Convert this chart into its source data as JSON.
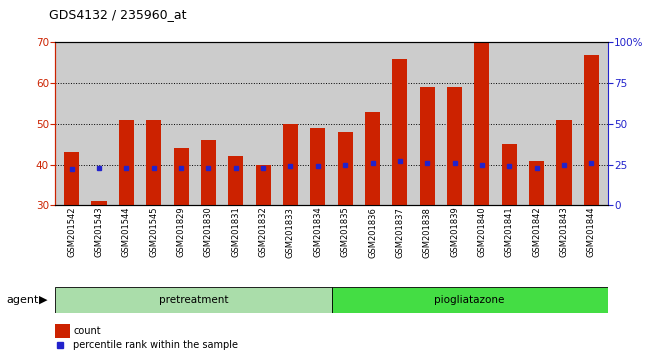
{
  "title": "GDS4132 / 235960_at",
  "samples": [
    "GSM201542",
    "GSM201543",
    "GSM201544",
    "GSM201545",
    "GSM201829",
    "GSM201830",
    "GSM201831",
    "GSM201832",
    "GSM201833",
    "GSM201834",
    "GSM201835",
    "GSM201836",
    "GSM201837",
    "GSM201838",
    "GSM201839",
    "GSM201840",
    "GSM201841",
    "GSM201842",
    "GSM201843",
    "GSM201844"
  ],
  "count_values": [
    43,
    31,
    51,
    51,
    44,
    46,
    42,
    40,
    50,
    49,
    48,
    53,
    66,
    59,
    59,
    70,
    45,
    41,
    51,
    67
  ],
  "percentile_values": [
    22,
    23,
    23,
    23,
    23,
    23,
    23,
    23,
    24,
    24,
    25,
    26,
    27,
    26,
    26,
    25,
    24,
    23,
    25,
    26
  ],
  "bar_color": "#cc2200",
  "marker_color": "#2222cc",
  "ylim_left": [
    30,
    70
  ],
  "ylim_right": [
    0,
    100
  ],
  "yticks_left": [
    30,
    40,
    50,
    60,
    70
  ],
  "yticks_right": [
    0,
    25,
    50,
    75,
    100
  ],
  "ytick_labels_right": [
    "0",
    "25",
    "50",
    "75",
    "100%"
  ],
  "groups": [
    {
      "label": "pretreatment",
      "start": 0,
      "end": 10,
      "color": "#aaddaa"
    },
    {
      "label": "piogliatazone",
      "start": 10,
      "end": 20,
      "color": "#44dd44"
    }
  ],
  "agent_label": "agent",
  "legend_count_label": "count",
  "legend_pct_label": "percentile rank within the sample",
  "background_color": "#cccccc",
  "bar_width": 0.55,
  "grid_ticks": [
    40,
    50,
    60
  ]
}
